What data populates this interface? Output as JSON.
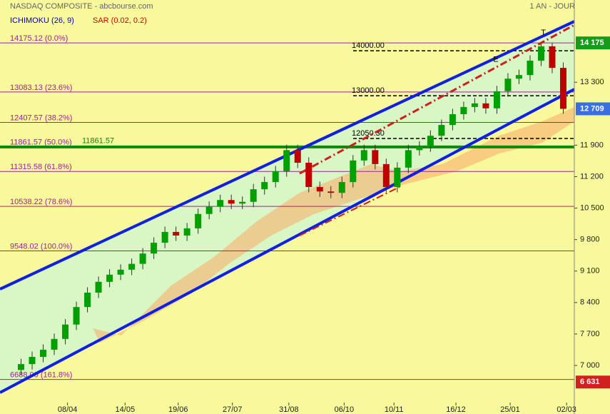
{
  "chart_data": {
    "type": "candlestick",
    "title": "NASDAQ COMPOSITE - abcbourse.com",
    "period": "1 AN - JOUR",
    "indicators": [
      {
        "name": "ICHIMOKU (26, 9)",
        "color": "#0000cc"
      },
      {
        "name": "SAR (0.02, 0.2)",
        "color": "#cc0000"
      }
    ],
    "up_color": "#00a000",
    "down_color": "#c00000",
    "open": [
      6900,
      7030,
      7190,
      7350,
      7590,
      7910,
      8300,
      8620,
      8860,
      9020,
      9130,
      9260,
      9490,
      9730,
      9970,
      9890,
      10050,
      10370,
      10530,
      10680,
      10600,
      10640,
      10920,
      11080,
      11320,
      11790,
      11510,
      10970,
      10870,
      10840,
      11080,
      11560,
      11790,
      11480,
      10970,
      11400,
      11790,
      11870,
      12110,
      12350,
      12590,
      12750,
      12830,
      12720,
      13100,
      13380,
      13460,
      13780,
      14100,
      13620
    ],
    "high": [
      7150,
      7310,
      7470,
      7710,
      8030,
      8420,
      8740,
      8980,
      9140,
      9250,
      9380,
      9610,
      9850,
      10090,
      10090,
      10170,
      10490,
      10650,
      10800,
      10800,
      10760,
      11040,
      11200,
      11440,
      11910,
      11910,
      11630,
      11090,
      10990,
      11200,
      11680,
      11910,
      11910,
      11600,
      11520,
      11910,
      11990,
      12230,
      12470,
      12710,
      12870,
      12950,
      12950,
      13220,
      13500,
      13580,
      13900,
      14150,
      14175,
      13740
    ],
    "low": [
      6780,
      6910,
      7070,
      7230,
      7470,
      7790,
      8180,
      8500,
      8740,
      8900,
      9010,
      9140,
      9370,
      9610,
      9770,
      9770,
      9930,
      10250,
      10410,
      10480,
      10480,
      10520,
      10800,
      10960,
      11200,
      11390,
      10850,
      10750,
      10720,
      10720,
      10960,
      11440,
      11360,
      10850,
      10850,
      11280,
      11670,
      11750,
      11990,
      12230,
      12470,
      12630,
      12600,
      12600,
      12980,
      13260,
      13340,
      13660,
      13500,
      12600
    ],
    "close": [
      7030,
      7190,
      7350,
      7590,
      7910,
      8300,
      8620,
      8860,
      9020,
      9130,
      9260,
      9490,
      9730,
      9970,
      9890,
      10050,
      10370,
      10530,
      10680,
      10600,
      10640,
      10920,
      11080,
      11320,
      11790,
      11510,
      10970,
      10870,
      10840,
      11080,
      11560,
      11790,
      11480,
      10970,
      11400,
      11790,
      11870,
      12110,
      12350,
      12590,
      12750,
      12830,
      12720,
      13100,
      13380,
      13460,
      13780,
      14100,
      13620,
      12709
    ],
    "xlim": [
      -1,
      50
    ],
    "xticks": [
      {
        "value": 4.2,
        "label": "08/04"
      },
      {
        "value": 9.4,
        "label": "14/05"
      },
      {
        "value": 14.2,
        "label": "19/06"
      },
      {
        "value": 19.1,
        "label": "27/07"
      },
      {
        "value": 24.2,
        "label": "31/08"
      },
      {
        "value": 29.2,
        "label": "06/10"
      },
      {
        "value": 33.7,
        "label": "10/11"
      },
      {
        "value": 39.3,
        "label": "16/12"
      },
      {
        "value": 44.2,
        "label": "25/01"
      },
      {
        "value": 49.3,
        "label": "02/03"
      }
    ],
    "ylim": [
      5920,
      15130
    ],
    "yticks": [
      {
        "value": 13300,
        "label": "13 300"
      },
      {
        "value": 11900,
        "label": "11 900"
      },
      {
        "value": 11200,
        "label": "11 200"
      },
      {
        "value": 10500,
        "label": "10 500"
      },
      {
        "value": 9800,
        "label": "9 800"
      },
      {
        "value": 9100,
        "label": "9 100"
      },
      {
        "value": 8400,
        "label": "8 400"
      },
      {
        "value": 7700,
        "label": "7 700"
      },
      {
        "value": 7000,
        "label": "7 000"
      }
    ],
    "price_badges": [
      {
        "value": 14175,
        "label": "14 175",
        "color": "#1a9a1a"
      },
      {
        "value": 12709,
        "label": "12 709",
        "color": "#3a6fe0"
      },
      {
        "value": 6631,
        "label": "6 631",
        "color": "#d02020"
      }
    ],
    "fibonacci_levels": [
      {
        "value": 14175.12,
        "label": "14175.12  (0.0%)"
      },
      {
        "value": 13083.13,
        "label": "13083.13  (23.6%)"
      },
      {
        "value": 12407.57,
        "label": "12407.57  (38.2%)"
      },
      {
        "value": 11861.57,
        "label": "11861.57  (50.0%)"
      },
      {
        "value": 11315.58,
        "label": "11315.58  (61.8%)"
      },
      {
        "value": 10538.22,
        "label": "10538.22  (78.6%)"
      },
      {
        "value": 9548.02,
        "label": "9548.02  (100.0%)"
      },
      {
        "value": 6688.0,
        "label": "6688.00  (161.8%)"
      }
    ],
    "fib_color": "#a020a0",
    "dashed_levels": [
      {
        "value": 14000,
        "label": "14000.00"
      },
      {
        "value": 13000,
        "label": "13000.00"
      },
      {
        "value": 12050.3,
        "label": "12050.30"
      }
    ],
    "support_level": {
      "value": 11861.57,
      "label": "11861.57",
      "color": "#0a8a0a"
    },
    "annotations": [
      {
        "text": "T",
        "x": 47.2,
        "y": 14400
      },
      {
        "text": "E",
        "x": 42.9,
        "y": 13800
      }
    ]
  }
}
